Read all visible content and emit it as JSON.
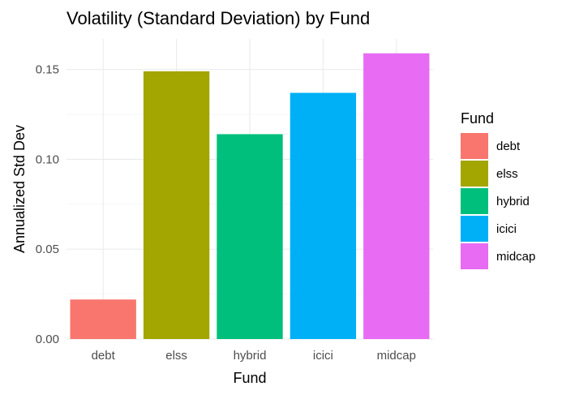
{
  "chart_data": {
    "type": "bar",
    "title": "Volatility (Standard Deviation) by Fund",
    "xlabel": "Fund",
    "ylabel": "Annualized Std Dev",
    "categories": [
      "debt",
      "elss",
      "hybrid",
      "icici",
      "midcap"
    ],
    "values": [
      0.022,
      0.149,
      0.114,
      0.137,
      0.159
    ],
    "colors": [
      "#F8766D",
      "#A3A500",
      "#00BF7D",
      "#00B0F6",
      "#E76BF3"
    ],
    "ylim": [
      0,
      0.167
    ],
    "yticks": [
      0.0,
      0.05,
      0.1,
      0.15
    ],
    "ytick_labels": [
      "0.00",
      "0.05",
      "0.10",
      "0.15"
    ],
    "grid": true,
    "legend": {
      "title": "Fund",
      "position": "right",
      "entries": [
        "debt",
        "elss",
        "hybrid",
        "icici",
        "midcap"
      ]
    }
  }
}
